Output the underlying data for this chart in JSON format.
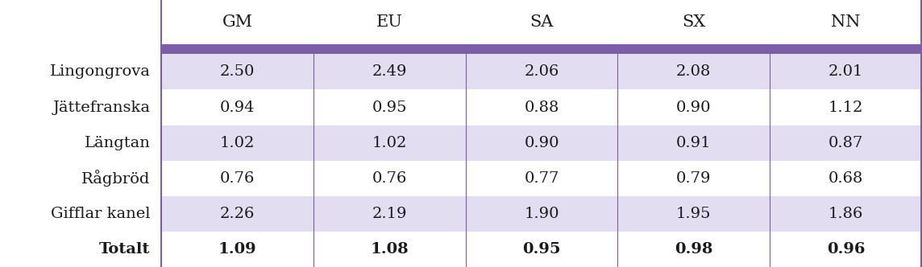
{
  "columns": [
    "GM",
    "EU",
    "SA",
    "SX",
    "NN"
  ],
  "rows": [
    {
      "label": "Lingongrova",
      "values": [
        "2.50",
        "2.49",
        "2.06",
        "2.08",
        "2.01"
      ],
      "bold": false
    },
    {
      "label": "Jättefranska",
      "values": [
        "0.94",
        "0.95",
        "0.88",
        "0.90",
        "1.12"
      ],
      "bold": false
    },
    {
      "label": "Längtan",
      "values": [
        "1.02",
        "1.02",
        "0.90",
        "0.91",
        "0.87"
      ],
      "bold": false
    },
    {
      "label": "Rågbröd",
      "values": [
        "0.76",
        "0.76",
        "0.77",
        "0.79",
        "0.68"
      ],
      "bold": false
    },
    {
      "label": "Gifflar kanel",
      "values": [
        "2.26",
        "2.19",
        "1.90",
        "1.95",
        "1.86"
      ],
      "bold": false
    },
    {
      "label": "Totalt",
      "values": [
        "1.09",
        "1.08",
        "0.95",
        "0.98",
        "0.96"
      ],
      "bold": true
    }
  ],
  "header_bg": "#7B5EA7",
  "row_bg_odd": "#E2DDF0",
  "row_bg_even": "#FFFFFF",
  "divider_color": "#7B5EA7",
  "text_color": "#1a1a1a",
  "figsize": [
    11.44,
    3.32
  ],
  "dpi": 100
}
